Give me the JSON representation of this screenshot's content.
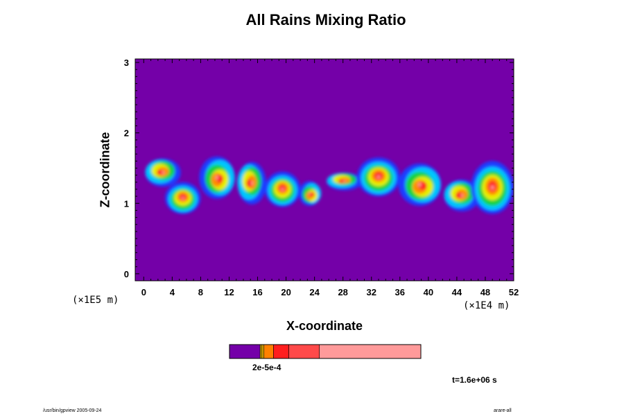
{
  "chart_data": {
    "type": "heatmap",
    "title": "All Rains Mixing Ratio",
    "xlabel": "X-coordinate",
    "ylabel": "Z-coordinate",
    "x_unit": "(×1E4 m)",
    "y_unit": "(×1E5 m)",
    "xlim": [
      -1.2,
      52
    ],
    "ylim": [
      -0.1,
      3.05
    ],
    "x_ticks": [
      "0",
      "4",
      "8",
      "12",
      "16",
      "20",
      "24",
      "28",
      "32",
      "36",
      "40",
      "44",
      "48",
      "52"
    ],
    "y_ticks": [
      "0",
      "1",
      "2",
      "3"
    ],
    "background_color": "#7400a8",
    "bands": [
      {
        "x_from": 0,
        "x_to": 5,
        "y_from": 1.25,
        "y_to": 1.65
      },
      {
        "x_from": 3,
        "x_to": 8,
        "y_from": 0.85,
        "y_to": 1.3
      },
      {
        "x_from": 8,
        "x_to": 13,
        "y_from": 1.05,
        "y_to": 1.65
      },
      {
        "x_from": 13,
        "x_to": 17,
        "y_from": 1.0,
        "y_to": 1.6
      },
      {
        "x_from": 17,
        "x_to": 22,
        "y_from": 0.95,
        "y_to": 1.45
      },
      {
        "x_from": 22,
        "x_to": 25,
        "y_from": 0.95,
        "y_to": 1.3
      },
      {
        "x_from": 25.5,
        "x_to": 30.5,
        "y_from": 1.2,
        "y_to": 1.45
      },
      {
        "x_from": 30,
        "x_to": 36,
        "y_from": 1.1,
        "y_to": 1.65
      },
      {
        "x_from": 36,
        "x_to": 42,
        "y_from": 0.95,
        "y_to": 1.55
      },
      {
        "x_from": 42,
        "x_to": 47,
        "y_from": 0.9,
        "y_to": 1.35
      },
      {
        "x_from": 46,
        "x_to": 52,
        "y_from": 0.85,
        "y_to": 1.6
      }
    ],
    "colorbar": {
      "label": "2e-5e-4",
      "colors": [
        "#7400a8",
        "#c8a000",
        "#f0b400",
        "#ff8000",
        "#ff1e1e",
        "#ff4a4a",
        "#ff9a9a"
      ],
      "fractions": [
        0.16,
        0.01,
        0.01,
        0.05,
        0.08,
        0.16,
        0.53
      ]
    },
    "time_label": "t=1.6e+06 s"
  },
  "footer": {
    "left": "/usr/bin/gpview 2005-09-24",
    "right": "arare-all"
  }
}
